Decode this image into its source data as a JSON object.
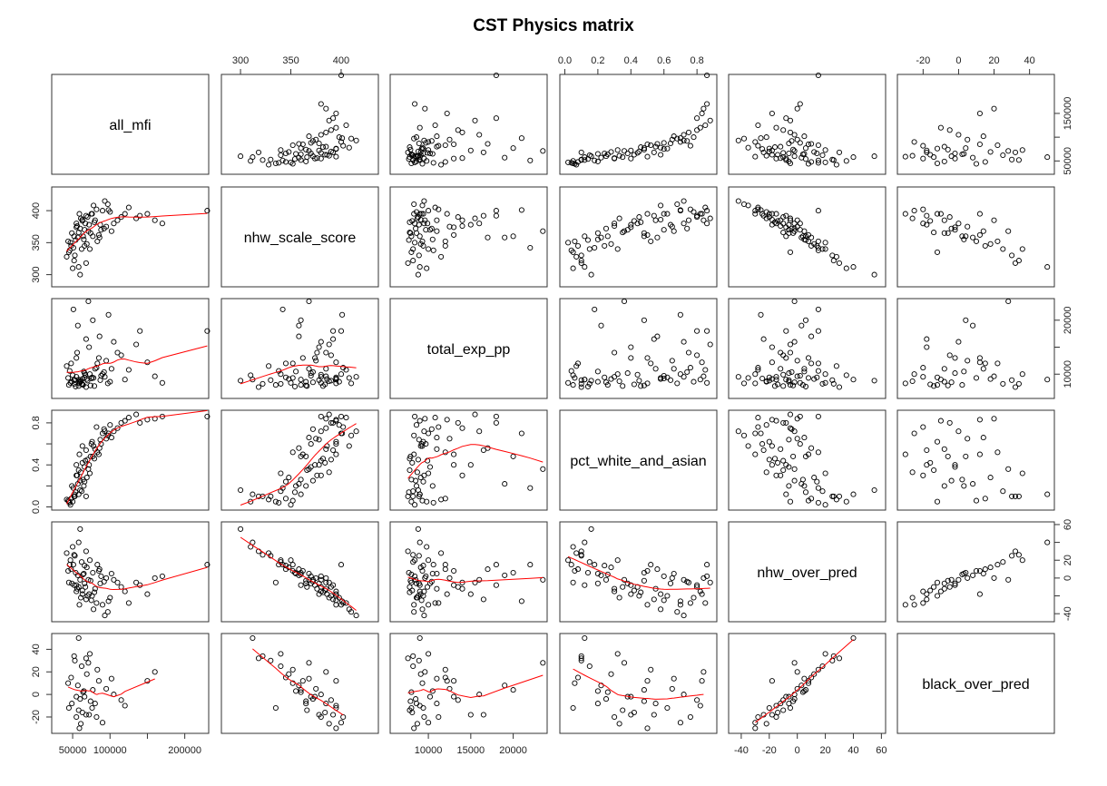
{
  "chart_data": {
    "type": "scatter-matrix",
    "title": "CST Physics  matrix",
    "grid": false,
    "smoother_color": "#ff0000",
    "point_color": "#000000",
    "smoother_in": "lower panels",
    "variables": [
      {
        "name": "all_mfi",
        "range": [
          22000,
          232000
        ],
        "ticks": [
          50000,
          100000,
          150000,
          200000
        ],
        "labels_bottom": [
          "50000",
          "100000",
          "",
          "200000"
        ],
        "right_ticks": [
          50000,
          100000,
          150000
        ],
        "labels_right": [
          "50000",
          "",
          "150000"
        ]
      },
      {
        "name": "nhw_scale_score",
        "range": [
          281,
          437
        ],
        "ticks": [
          300,
          350,
          400
        ],
        "labels_top": [
          "300",
          "350",
          "400"
        ],
        "left_ticks": [
          300,
          350,
          400
        ],
        "labels_left": [
          "300",
          "350",
          "400"
        ]
      },
      {
        "name": "total_exp_pp",
        "range": [
          5500,
          24000
        ],
        "ticks": [
          10000,
          15000,
          20000
        ],
        "labels_bottom": [
          "10000",
          "15000",
          "20000"
        ],
        "right_ticks": [
          10000,
          15000,
          20000
        ],
        "labels_right": [
          "10000",
          "",
          "20000"
        ]
      },
      {
        "name": "pct_white_and_asian",
        "range": [
          -0.03,
          0.92
        ],
        "ticks": [
          0,
          0.2,
          0.4,
          0.6,
          0.8
        ],
        "labels_top": [
          "0.0",
          "0.2",
          "0.4",
          "0.6",
          "0.8"
        ],
        "left_ticks": [
          0,
          0.2,
          0.4,
          0.6,
          0.8
        ],
        "labels_left": [
          "0.0",
          "",
          "0.4",
          "",
          "0.8"
        ]
      },
      {
        "name": "nhw_over_pred",
        "range": [
          -49,
          63
        ],
        "ticks": [
          -40,
          -20,
          0,
          20,
          40,
          60
        ],
        "labels_bottom": [
          "-40",
          "-20",
          "0",
          "20",
          "40",
          "60"
        ],
        "right_ticks": [
          -40,
          -20,
          0,
          20,
          40,
          60
        ],
        "labels_right": [
          "-40",
          "",
          "0",
          "20",
          "",
          "60"
        ]
      },
      {
        "name": "black_over_pred",
        "range": [
          -34.5,
          54
        ],
        "ticks": [
          -20,
          0,
          20,
          40
        ],
        "labels_top": [
          "-20",
          "0",
          "20",
          "40"
        ],
        "left_ticks": [
          -20,
          0,
          20,
          40
        ],
        "labels_left": [
          "-20",
          "0",
          "20",
          "40"
        ]
      }
    ],
    "observations": [
      [
        45000,
        335,
        8000,
        0.05,
        -5,
        -12
      ],
      [
        52000,
        360,
        9000,
        0.12,
        -8,
        null
      ],
      [
        60000,
        372,
        8500,
        0.25,
        -2,
        -4
      ],
      [
        48000,
        345,
        12000,
        0.08,
        10,
        15
      ],
      [
        55000,
        380,
        9500,
        0.3,
        -15,
        -20
      ],
      [
        70000,
        390,
        8800,
        0.45,
        -20,
        null
      ],
      [
        65000,
        355,
        10500,
        0.2,
        5,
        3
      ],
      [
        58000,
        366,
        7800,
        0.35,
        -10,
        -14
      ],
      [
        75000,
        395,
        9200,
        0.6,
        -25,
        null
      ],
      [
        80000,
        385,
        11000,
        0.55,
        -12,
        -8
      ],
      [
        62000,
        340,
        8200,
        0.15,
        18,
        25
      ],
      [
        50000,
        310,
        9800,
        0.05,
        35,
        null
      ],
      [
        68000,
        318,
        7600,
        0.1,
        30,
        32
      ],
      [
        90000,
        400,
        10000,
        0.7,
        -30,
        -25
      ],
      [
        95000,
        375,
        12500,
        0.65,
        0,
        5
      ],
      [
        110000,
        385,
        14000,
        0.75,
        -5,
        null
      ],
      [
        120000,
        395,
        9000,
        0.82,
        -15,
        -10
      ],
      [
        140000,
        392,
        18000,
        0.8,
        -8,
        null
      ],
      [
        72000,
        378,
        15000,
        0.4,
        -18,
        -18
      ],
      [
        85000,
        362,
        13000,
        0.5,
        8,
        12
      ],
      [
        47000,
        350,
        8400,
        0.02,
        20,
        null
      ],
      [
        53000,
        330,
        8900,
        0.1,
        25,
        30
      ],
      [
        78000,
        408,
        9300,
        0.58,
        -35,
        null
      ],
      [
        66000,
        370,
        10200,
        0.38,
        -6,
        -2
      ],
      [
        100000,
        398,
        8600,
        0.78,
        -22,
        null
      ],
      [
        57000,
        358,
        19000,
        0.22,
        3,
        8
      ],
      [
        63000,
        384,
        8100,
        0.42,
        -14,
        -16
      ],
      [
        88000,
        370,
        9700,
        0.6,
        2,
        null
      ],
      [
        105000,
        380,
        16000,
        0.72,
        -2,
        0
      ],
      [
        42000,
        328,
        11500,
        0.07,
        28,
        null
      ],
      [
        74000,
        365,
        7900,
        0.48,
        -3,
        -6
      ],
      [
        69000,
        348,
        9100,
        0.28,
        12,
        18
      ],
      [
        125000,
        405,
        10800,
        0.85,
        -28,
        null
      ],
      [
        160000,
        385,
        9600,
        0.84,
        0,
        20
      ],
      [
        230000,
        400,
        18000,
        0.86,
        15,
        null
      ],
      [
        56000,
        376,
        14000,
        0.3,
        -12,
        null
      ],
      [
        61000,
        388,
        8700,
        0.33,
        -22,
        -26
      ],
      [
        83000,
        352,
        12000,
        0.52,
        15,
        22
      ],
      [
        97000,
        410,
        8300,
        0.68,
        -38,
        null
      ],
      [
        51000,
        342,
        22000,
        0.18,
        15,
        null
      ],
      [
        76000,
        395,
        9400,
        0.62,
        -20,
        -12
      ],
      [
        64000,
        360,
        8000,
        0.26,
        4,
        2
      ],
      [
        92000,
        372,
        10400,
        0.74,
        -4,
        null
      ],
      [
        58000,
        312,
        9000,
        0.12,
        40,
        50
      ],
      [
        71000,
        368,
        23500,
        0.36,
        -2,
        28
      ],
      [
        54000,
        354,
        7700,
        0.14,
        6,
        null
      ],
      [
        82000,
        402,
        11200,
        0.76,
        -28,
        -20
      ],
      [
        67000,
        380,
        9900,
        0.44,
        -10,
        null
      ],
      [
        115000,
        390,
        13500,
        0.8,
        -10,
        -5
      ],
      [
        49000,
        365,
        8600,
        0.2,
        -6,
        -8
      ],
      [
        86000,
        358,
        17000,
        0.56,
        10,
        null
      ],
      [
        59000,
        395,
        8300,
        0.5,
        -30,
        -30
      ],
      [
        73000,
        340,
        10000,
        0.32,
        20,
        36
      ],
      [
        135000,
        388,
        15500,
        0.88,
        -5,
        null
      ],
      [
        44000,
        352,
        9300,
        0.06,
        8,
        10
      ],
      [
        79000,
        382,
        7800,
        0.46,
        -16,
        null
      ],
      [
        102000,
        368,
        11000,
        0.66,
        5,
        14
      ],
      [
        60000,
        300,
        8800,
        0.16,
        55,
        null
      ],
      [
        55000,
        374,
        13000,
        0.4,
        -8,
        -2
      ],
      [
        93000,
        415,
        9500,
        0.72,
        -42,
        null
      ],
      [
        68000,
        392,
        16500,
        0.54,
        -24,
        -18
      ],
      [
        87000,
        378,
        8900,
        0.64,
        -6,
        null
      ],
      [
        150000,
        395,
        12200,
        0.83,
        -18,
        12
      ],
      [
        46000,
        338,
        10600,
        0.04,
        15,
        null
      ],
      [
        77000,
        360,
        20000,
        0.48,
        6,
        4
      ],
      [
        63000,
        386,
        9100,
        0.58,
        -18,
        null
      ],
      [
        170000,
        380,
        8400,
        0.86,
        2,
        null
      ],
      [
        52000,
        322,
        8200,
        0.1,
        26,
        34
      ],
      [
        98000,
        401,
        21000,
        0.7,
        -26,
        null
      ],
      [
        66000,
        345,
        9400,
        0.24,
        14,
        null
      ]
    ]
  }
}
